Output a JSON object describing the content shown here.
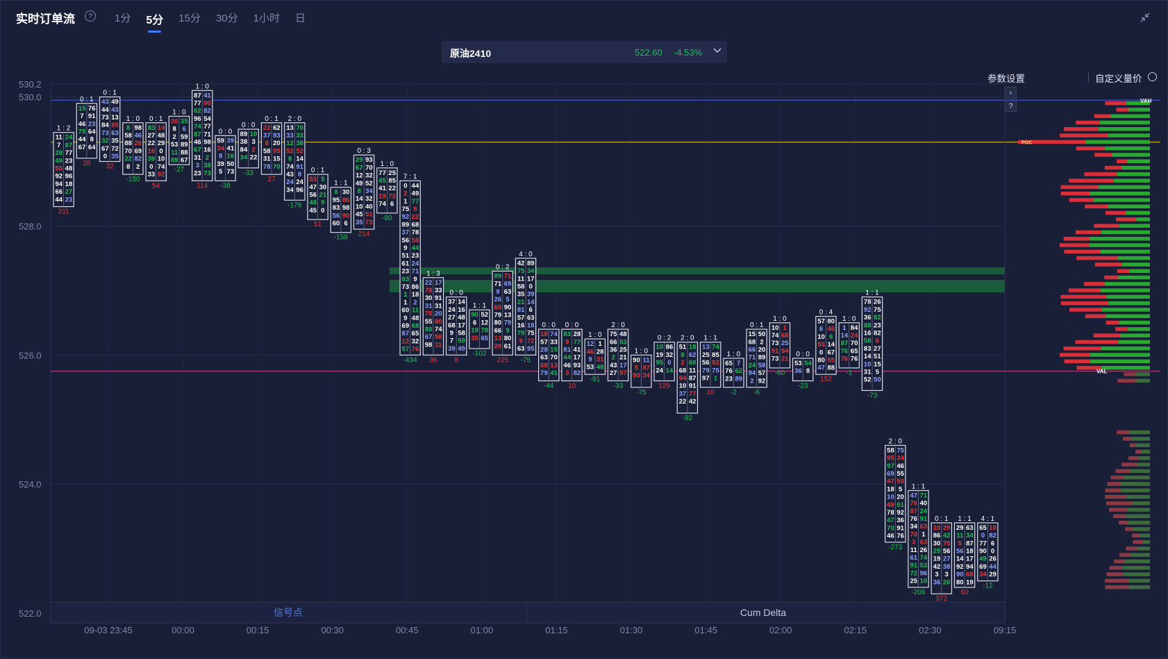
{
  "header": {
    "title": "实时订单流",
    "help_icon": "question-circle-icon",
    "tabs": [
      {
        "label": "1分"
      },
      {
        "label": "5分",
        "active": true
      },
      {
        "label": "15分"
      },
      {
        "label": "30分"
      },
      {
        "label": "1小时"
      },
      {
        "label": "日"
      }
    ],
    "collapse_icon": "collapse-arrows-icon"
  },
  "instrument": {
    "name": "原油2410",
    "price": "522.60",
    "change": "-4.53%",
    "dropdown_icon": "chevron-down-icon"
  },
  "toolbar": {
    "param_settings": "参数设置",
    "custom_volume_price": "自定义量价",
    "info_icon": "info-circle-icon"
  },
  "side_buttons": {
    "expand": "›",
    "help": "?"
  },
  "colors": {
    "background": "#1a1f38",
    "green": "#1fbf5a",
    "red": "#e03c3c",
    "blue": "#6f86e8",
    "vah_line": "#3c55c8",
    "poc_line": "#c8a640",
    "val_line": "#b0407a"
  },
  "chart_data": {
    "type": "footprint",
    "y_ticks": [
      "530.2",
      "530.0",
      "528.0",
      "526.0",
      "524.0",
      "522.0"
    ],
    "y_range": [
      522.0,
      530.2
    ],
    "x_ticks": [
      "09-03 23:45",
      "00:00",
      "00:15",
      "00:30",
      "00:45",
      "01:00",
      "01:15",
      "01:30",
      "01:45",
      "02:00",
      "02:15",
      "02:30",
      "09:15"
    ],
    "bottom_panels": [
      "信号点",
      "Cum Delta"
    ],
    "profile_markers": {
      "vah": "VAH",
      "poc": "POC",
      "val": "VAL"
    },
    "levels": {
      "vah": 529.95,
      "poc": 529.3,
      "val": 525.75
    },
    "bars": [
      {
        "ratio": "1 : 2",
        "high": 529.45,
        "low": 528.3,
        "delta": "211"
      },
      {
        "ratio": "0 : 1",
        "high": 529.9,
        "low": 529.05,
        "delta": "28"
      },
      {
        "ratio": "0 : 1",
        "high": 530.0,
        "low": 529.0,
        "delta": "32"
      },
      {
        "ratio": "1 : 0",
        "high": 529.6,
        "low": 528.8,
        "delta": "-150"
      },
      {
        "ratio": "0 : 1",
        "high": 529.6,
        "low": 528.7,
        "delta": "54"
      },
      {
        "ratio": "1 : 0",
        "high": 529.7,
        "low": 528.95,
        "delta": "-27"
      },
      {
        "ratio": "1 : 0",
        "high": 530.1,
        "low": 528.7,
        "delta": "114"
      },
      {
        "ratio": "0 : 0",
        "high": 529.4,
        "low": 528.7,
        "delta": "-38"
      },
      {
        "ratio": "0 : 0",
        "high": 529.5,
        "low": 528.9,
        "delta": "-33"
      },
      {
        "ratio": "0 : 1",
        "high": 529.6,
        "low": 528.8,
        "delta": "27"
      },
      {
        "ratio": "2 : 0",
        "high": 529.6,
        "low": 528.4,
        "delta": "-178"
      },
      {
        "ratio": "0 : 1",
        "high": 528.8,
        "low": 528.1,
        "delta": "51"
      },
      {
        "ratio": "1 : 1",
        "high": 528.6,
        "low": 527.9,
        "delta": "-158"
      },
      {
        "ratio": "0 : 3",
        "high": 529.1,
        "low": 527.95,
        "delta": "214"
      },
      {
        "ratio": "1 : 0",
        "high": 528.9,
        "low": 528.2,
        "delta": "-80"
      },
      {
        "ratio": "7 : 1",
        "high": 528.7,
        "low": 526.0,
        "delta": "-434"
      },
      {
        "ratio": "1 : 3",
        "high": 527.2,
        "low": 526.0,
        "delta": "36"
      },
      {
        "ratio": "0 : 0",
        "high": 526.9,
        "low": 526.0,
        "delta": "8"
      },
      {
        "ratio": "1 : 1",
        "high": 526.7,
        "low": 526.1,
        "delta": "-102"
      },
      {
        "ratio": "0 : 2",
        "high": 527.3,
        "low": 526.0,
        "delta": "225"
      },
      {
        "ratio": "4 : 0",
        "high": 527.5,
        "low": 526.0,
        "delta": "-75"
      },
      {
        "ratio": "0 : 0",
        "high": 526.4,
        "low": 525.6,
        "delta": "-44"
      },
      {
        "ratio": "0 : 0",
        "high": 526.4,
        "low": 525.6,
        "delta": "10"
      },
      {
        "ratio": "1 : 0",
        "high": 526.25,
        "low": 525.7,
        "delta": "-91"
      },
      {
        "ratio": "2 : 0",
        "high": 526.4,
        "low": 525.6,
        "delta": "-33"
      },
      {
        "ratio": "1 : 0",
        "high": 526.0,
        "low": 525.5,
        "delta": "-75"
      },
      {
        "ratio": "0 : 2",
        "high": 526.2,
        "low": 525.6,
        "delta": "129"
      },
      {
        "ratio": "2 : 0",
        "high": 526.2,
        "low": 525.1,
        "delta": "-92"
      },
      {
        "ratio": "1 : 1",
        "high": 526.2,
        "low": 525.5,
        "delta": "10"
      },
      {
        "ratio": "1 : 0",
        "high": 525.95,
        "low": 525.5,
        "delta": "-2"
      },
      {
        "ratio": "0 : 1",
        "high": 526.4,
        "low": 525.5,
        "delta": "-6"
      },
      {
        "ratio": "1 : 0",
        "high": 526.5,
        "low": 525.8,
        "delta": "-60"
      },
      {
        "ratio": "0 : 0",
        "high": 525.95,
        "low": 525.6,
        "delta": "-23"
      },
      {
        "ratio": "0 : 4",
        "high": 526.6,
        "low": 525.7,
        "delta": "152"
      },
      {
        "ratio": "1 : 0",
        "high": 526.5,
        "low": 525.8,
        "delta": "-1"
      },
      {
        "ratio": "1 : 1",
        "high": 526.9,
        "low": 525.45,
        "delta": "-73"
      },
      {
        "ratio": "2 : 0",
        "high": 524.6,
        "low": 523.1,
        "delta": "-273"
      },
      {
        "ratio": "1 : 1",
        "high": 523.9,
        "low": 522.4,
        "delta": "-206"
      },
      {
        "ratio": "0 : 1",
        "high": 523.4,
        "low": 522.3,
        "delta": "372"
      },
      {
        "ratio": "1 : 1",
        "high": 523.4,
        "low": 522.4,
        "delta": "60"
      },
      {
        "ratio": "4 : 1",
        "high": 523.4,
        "low": 522.5,
        "delta": "-12"
      }
    ]
  }
}
